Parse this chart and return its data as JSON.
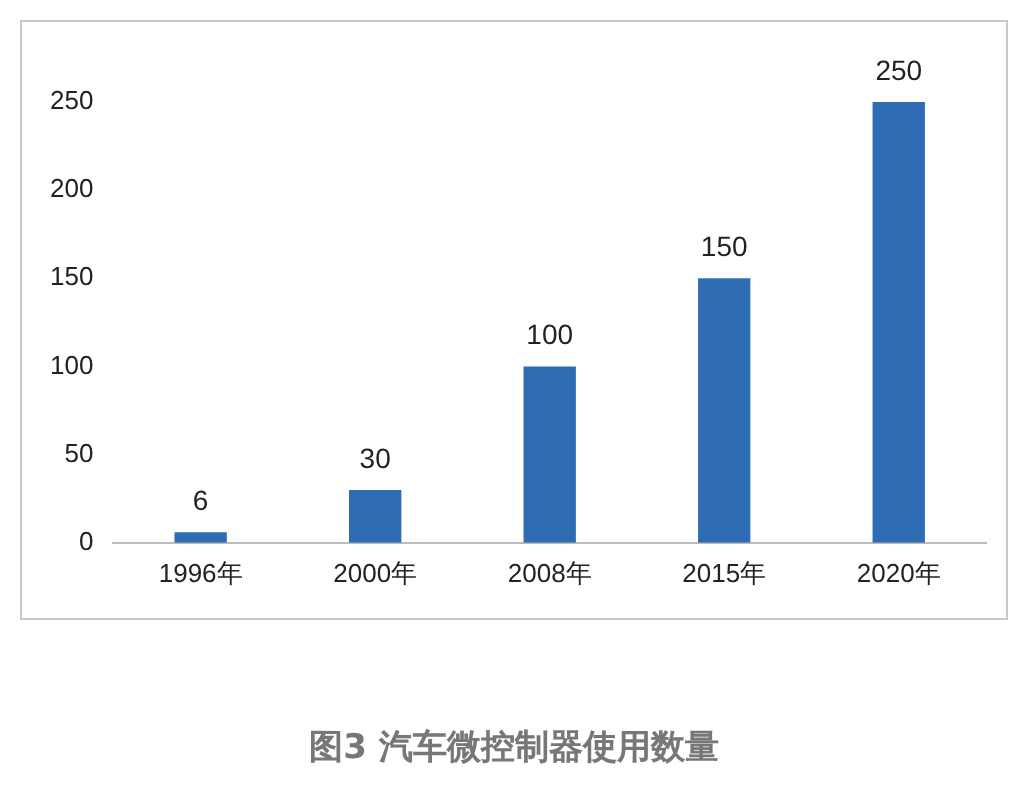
{
  "chart_data": {
    "type": "bar",
    "title": "图3 汽车微控制器使用数量",
    "categories": [
      "1996年",
      "2000年",
      "2008年",
      "2015年",
      "2020年"
    ],
    "values": [
      6,
      30,
      100,
      150,
      250
    ],
    "color": "#2e6db4",
    "ylim": [
      0,
      250
    ],
    "yticks": [
      0,
      50,
      100,
      150,
      200,
      250
    ],
    "grid": false,
    "data_labels": true
  }
}
